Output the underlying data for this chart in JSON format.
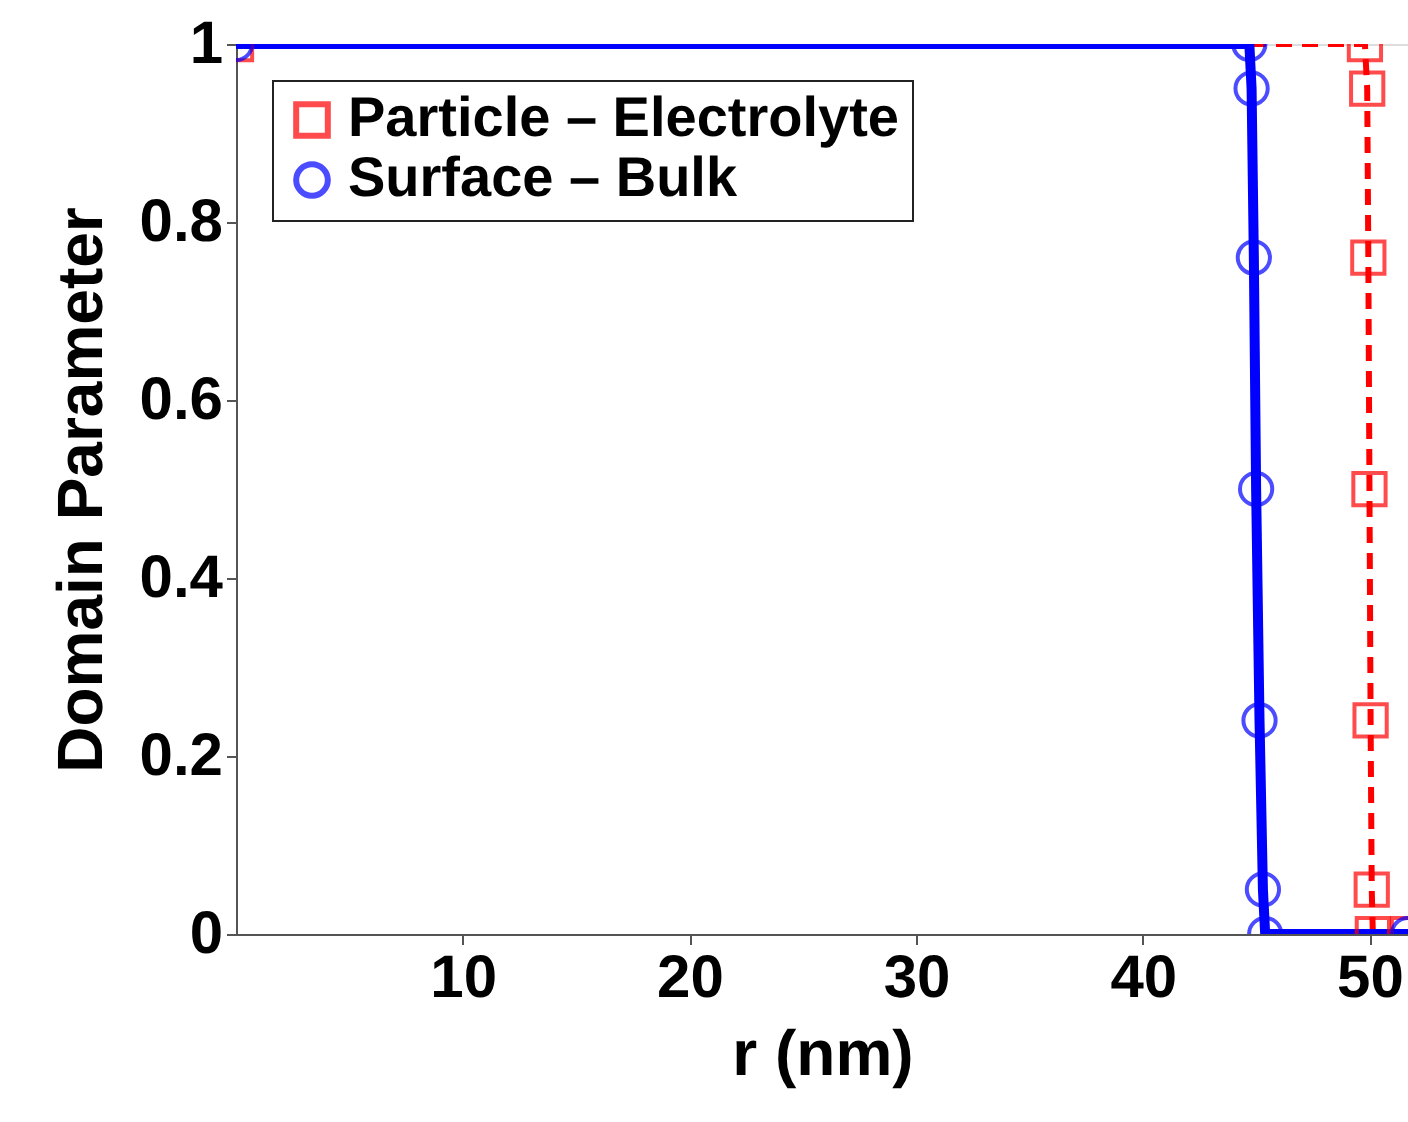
{
  "chart_data": {
    "type": "line",
    "xlabel": "r (nm)",
    "ylabel": "Domain Parameter",
    "xlim": [
      0,
      51.7
    ],
    "xticks": [
      10,
      20,
      30,
      40,
      50
    ],
    "ylim": [
      0,
      1
    ],
    "yticks": [
      0,
      {
        "value": 0.2,
        "label": "0.2"
      },
      {
        "value": 0.4,
        "label": "0.4"
      },
      {
        "value": 0.6,
        "label": "0.6"
      },
      {
        "value": 0.8,
        "label": "0.8"
      },
      1
    ],
    "legend": "top left",
    "grid": false,
    "series": [
      {
        "name": "Particle – Electrolyte",
        "color": "#ff0000",
        "marker": "square",
        "line_style": "dashed",
        "x": [
          0,
          49.8,
          49.9,
          49.95,
          50.0,
          50.05,
          50.1,
          50.15,
          51.7
        ],
        "values": [
          1,
          1,
          0.95,
          0.76,
          0.5,
          0.24,
          0.05,
          0,
          0
        ]
      },
      {
        "name": "Surface – Bulk",
        "color": "#0000ff",
        "marker": "circle",
        "line_style": "solid",
        "x": [
          0,
          44.7,
          44.8,
          44.9,
          45.0,
          45.15,
          45.3,
          45.4,
          51.7
        ],
        "values": [
          1,
          1,
          0.95,
          0.76,
          0.5,
          0.24,
          0.05,
          0,
          0
        ]
      }
    ]
  }
}
